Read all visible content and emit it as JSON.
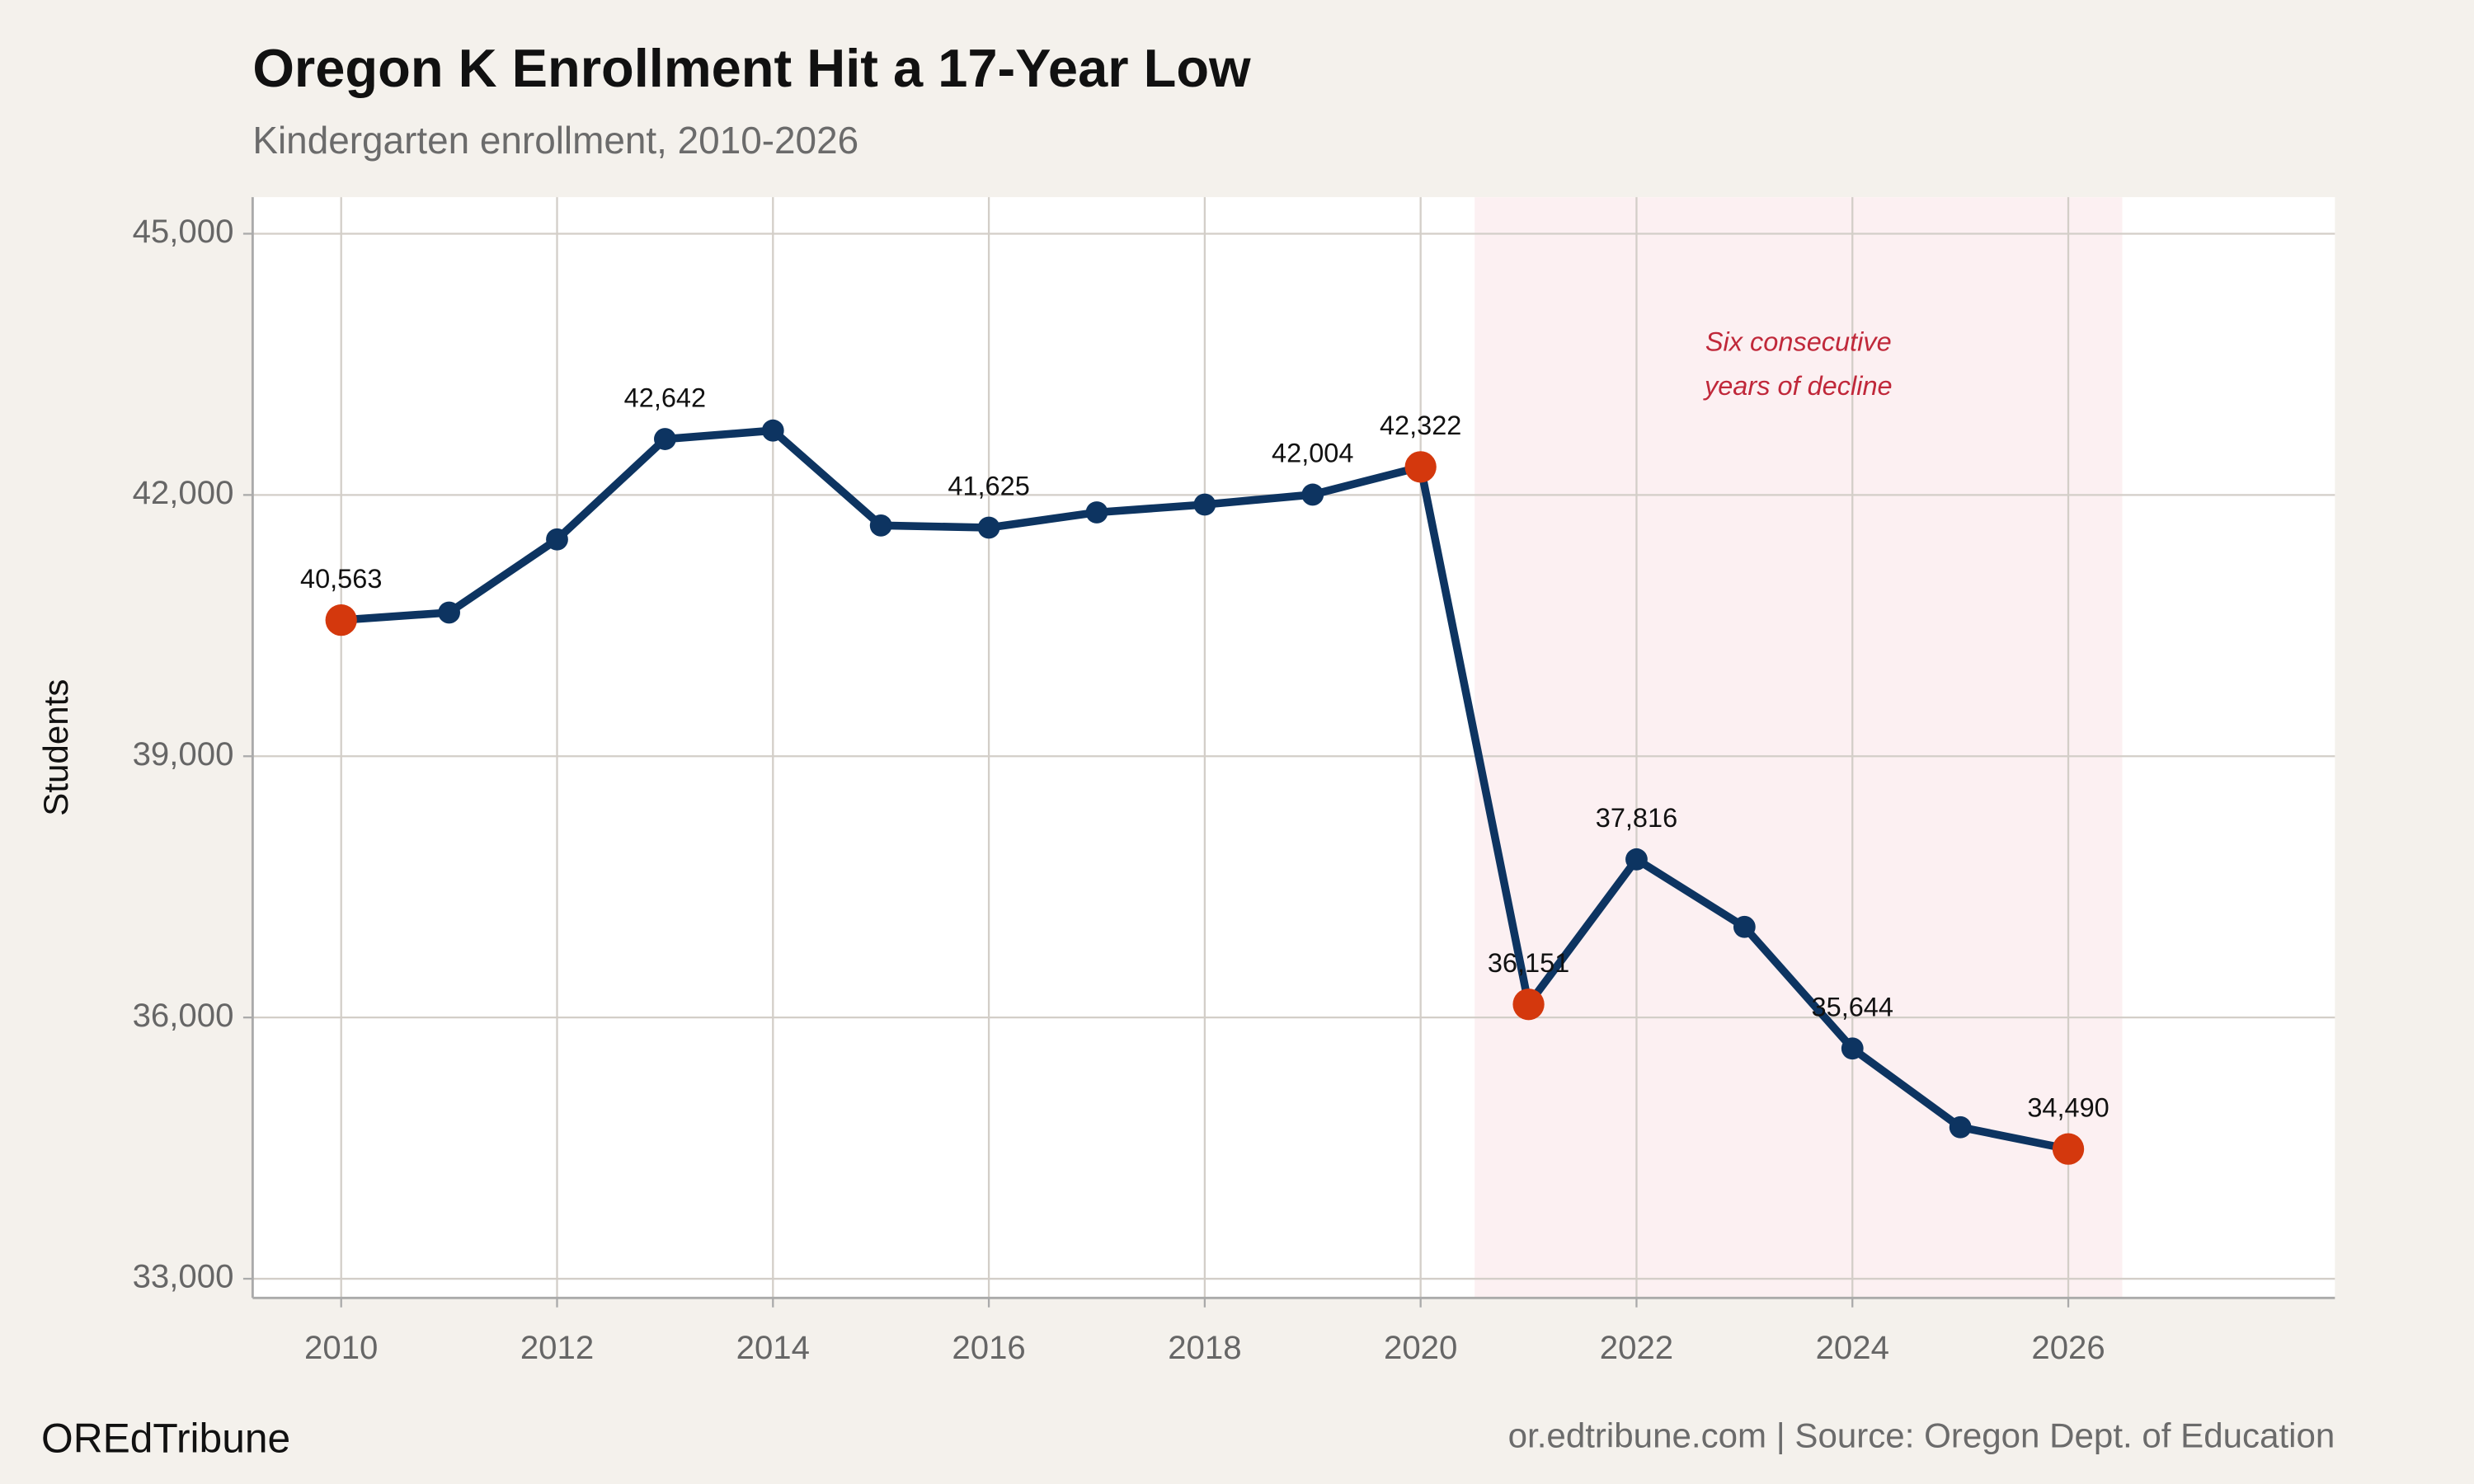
{
  "chart_data": {
    "type": "line",
    "title": "Oregon K Enrollment Hit a 17-Year Low",
    "subtitle": "Kindergarten enrollment, 2010-2026",
    "y_label": "Students",
    "x": [
      2010,
      2011,
      2012,
      2013,
      2014,
      2015,
      2016,
      2017,
      2018,
      2019,
      2020,
      2021,
      2022,
      2023,
      2024,
      2025,
      2026
    ],
    "series": [
      {
        "name": "Kindergarten enrollment",
        "color": "#0d3461",
        "values": [
          40563,
          40650,
          41490,
          42642,
          42740,
          41650,
          41625,
          41800,
          41890,
          42004,
          42322,
          36151,
          37816,
          37040,
          35644,
          34740,
          34490
        ],
        "value_labels": [
          "40,563",
          null,
          null,
          "42,642",
          null,
          null,
          "41,625",
          null,
          null,
          "42,004",
          "42,322",
          "36,151",
          "37,816",
          null,
          "35,644",
          null,
          "34,490"
        ]
      }
    ],
    "highlight_x": [
      2010,
      2020,
      2021,
      2026
    ],
    "highlight_color": "#d4380d",
    "shaded_range": [
      2020.5,
      2026.5
    ],
    "shade_color": "#fcf0f2",
    "annotation": [
      "Six consecutive",
      "years of decline"
    ],
    "annotation_color": "#c0283a",
    "xlim": [
      2009.18,
      2028.47
    ],
    "xticks": [
      2010,
      2012,
      2014,
      2016,
      2018,
      2020,
      2022,
      2024,
      2026
    ],
    "ylim": [
      32780,
      45420
    ],
    "yticks": [
      {
        "value": 33000,
        "label": "33,000"
      },
      {
        "value": 36000,
        "label": "36,000"
      },
      {
        "value": 39000,
        "label": "39,000"
      },
      {
        "value": 42000,
        "label": "42,000"
      },
      {
        "value": 45000,
        "label": "45,000"
      }
    ],
    "grid": true,
    "brand": "OREdTribune",
    "source": "or.edtribune.com | Source: Oregon Dept. of Education"
  }
}
